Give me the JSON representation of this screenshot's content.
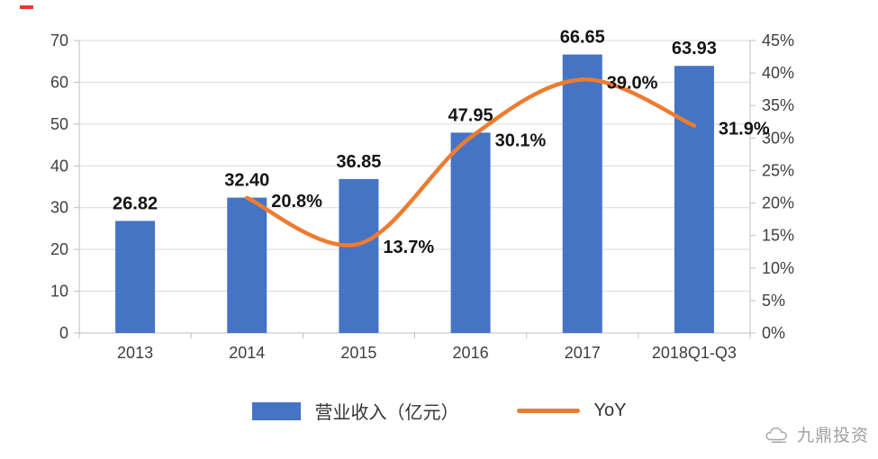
{
  "page": {
    "background": "#ffffff"
  },
  "decorations": {
    "red_mark_color": "#e8392e"
  },
  "chart_data": {
    "type": "bar+line",
    "title": "",
    "categories": [
      "2013",
      "2014",
      "2015",
      "2016",
      "2017",
      "2018Q1-Q3"
    ],
    "series": [
      {
        "name": "营业收入（亿元）",
        "chart": "bar",
        "axis": "left",
        "color": "#4574c5",
        "values": [
          26.82,
          32.4,
          36.85,
          47.95,
          66.65,
          63.93
        ],
        "labels": [
          "26.82",
          "32.40",
          "36.85",
          "47.95",
          "66.65",
          "63.93"
        ]
      },
      {
        "name": "YoY",
        "chart": "line",
        "axis": "right",
        "color": "#ed7c31",
        "values": [
          null,
          20.8,
          13.7,
          30.1,
          39.0,
          31.9
        ],
        "labels": [
          "",
          "20.8%",
          "13.7%",
          "30.1%",
          "39.0%",
          "31.9%"
        ]
      }
    ],
    "left_axis": {
      "min": 0,
      "max": 70,
      "step": 10,
      "ticks": [
        "0",
        "10",
        "20",
        "30",
        "40",
        "50",
        "60",
        "70"
      ]
    },
    "right_axis": {
      "min": 0,
      "max": 45,
      "step": 5,
      "ticks": [
        "0%",
        "5%",
        "10%",
        "15%",
        "20%",
        "25%",
        "30%",
        "35%",
        "40%",
        "45%"
      ]
    },
    "grid": true,
    "legend_position": "bottom"
  },
  "legend": {
    "items": [
      {
        "label": "营业收入（亿元）",
        "color": "#4574c5",
        "marker": "rect"
      },
      {
        "label": "YoY",
        "color": "#ed7c31",
        "marker": "line"
      }
    ]
  },
  "watermark": {
    "text": "九鼎投资"
  }
}
